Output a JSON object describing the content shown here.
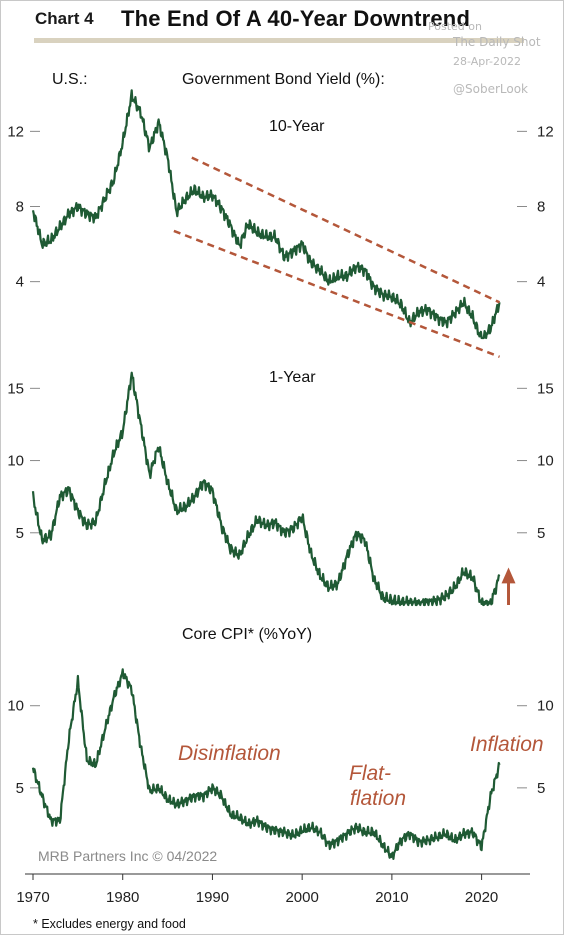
{
  "header": {
    "chart_label": "Chart 4",
    "title": "The End Of A 40-Year Downtrend"
  },
  "watermark": {
    "posted_on": "Posted on",
    "source": "The Daily Shot",
    "date": "28-Apr-2022",
    "handle": "@SoberLook"
  },
  "labels": {
    "country": "U.S.:",
    "measure": "Government Bond Yield (%):",
    "footnote": "* Excludes energy and food",
    "credit": "MRB Partners Inc © 04/2022"
  },
  "colors": {
    "line": "#1f5a34",
    "trend": "#b4573a",
    "arrow": "#b4573a",
    "rule": "#d9d2bf"
  },
  "chart_data": [
    {
      "type": "line",
      "title": "10-Year",
      "x": [
        1970,
        1971,
        1972,
        1973,
        1974,
        1975,
        1976,
        1977,
        1978,
        1979,
        1980,
        1981,
        1982,
        1983,
        1984,
        1985,
        1986,
        1987,
        1988,
        1989,
        1990,
        1991,
        1992,
        1993,
        1994,
        1995,
        1996,
        1997,
        1998,
        1999,
        2000,
        2001,
        2002,
        2003,
        2004,
        2005,
        2006,
        2007,
        2008,
        2009,
        2010,
        2011,
        2012,
        2013,
        2014,
        2015,
        2016,
        2017,
        2018,
        2019,
        2020,
        2021,
        2022
      ],
      "y": [
        7.8,
        6.0,
        6.2,
        6.9,
        7.6,
        8.0,
        7.6,
        7.4,
        8.4,
        9.4,
        11.4,
        13.9,
        13.0,
        11.1,
        12.5,
        10.6,
        7.7,
        8.4,
        8.9,
        8.5,
        8.6,
        7.9,
        7.0,
        5.9,
        7.1,
        6.6,
        6.4,
        6.4,
        5.3,
        5.6,
        6.0,
        5.0,
        4.6,
        4.0,
        4.3,
        4.3,
        4.8,
        4.6,
        3.7,
        3.3,
        3.2,
        2.8,
        1.8,
        2.4,
        2.5,
        2.1,
        1.8,
        2.3,
        2.9,
        2.1,
        0.9,
        1.5,
        2.9
      ],
      "ylim": [
        1,
        15
      ],
      "yticks": [
        4,
        8,
        12
      ],
      "trend_channel": {
        "upper": [
          [
            1987.7,
            10.6
          ],
          [
            2022.0,
            2.9
          ]
        ],
        "lower": [
          [
            1985.7,
            6.7
          ],
          [
            2022.0,
            0.0
          ]
        ]
      }
    },
    {
      "type": "line",
      "title": "1-Year",
      "x": [
        1970,
        1971,
        1972,
        1973,
        1974,
        1975,
        1976,
        1977,
        1978,
        1979,
        1980,
        1981,
        1982,
        1983,
        1984,
        1985,
        1986,
        1987,
        1988,
        1989,
        1990,
        1991,
        1992,
        1993,
        1994,
        1995,
        1996,
        1997,
        1998,
        1999,
        2000,
        2001,
        2002,
        2003,
        2004,
        2005,
        2006,
        2007,
        2008,
        2009,
        2010,
        2011,
        2012,
        2013,
        2014,
        2015,
        2016,
        2017,
        2018,
        2019,
        2020,
        2021,
        2022
      ],
      "y": [
        7.5,
        4.5,
        4.8,
        7.5,
        8.0,
        6.5,
        5.5,
        5.8,
        8.3,
        10.5,
        12.0,
        16.0,
        12.5,
        9.0,
        11.0,
        8.5,
        6.5,
        6.8,
        7.5,
        8.5,
        7.9,
        5.5,
        3.9,
        3.4,
        4.8,
        5.9,
        5.5,
        5.7,
        5.0,
        5.3,
        6.1,
        3.5,
        2.0,
        1.2,
        1.5,
        3.4,
        4.9,
        4.5,
        1.8,
        0.5,
        0.3,
        0.2,
        0.2,
        0.1,
        0.2,
        0.3,
        0.6,
        1.2,
        2.3,
        1.9,
        0.1,
        0.1,
        2.0
      ],
      "ylim": [
        0,
        18
      ],
      "yticks": [
        5,
        10,
        15
      ]
    },
    {
      "type": "line",
      "title": "Core CPI* (%YoY)",
      "x": [
        1970,
        1971,
        1972,
        1973,
        1974,
        1975,
        1976,
        1977,
        1978,
        1979,
        1980,
        1981,
        1982,
        1983,
        1984,
        1985,
        1986,
        1987,
        1988,
        1989,
        1990,
        1991,
        1992,
        1993,
        1994,
        1995,
        1996,
        1997,
        1998,
        1999,
        2000,
        2001,
        2002,
        2003,
        2004,
        2005,
        2006,
        2007,
        2008,
        2009,
        2010,
        2011,
        2012,
        2013,
        2014,
        2015,
        2016,
        2017,
        2018,
        2019,
        2020,
        2021,
        2022
      ],
      "y": [
        6.2,
        4.5,
        3.0,
        3.0,
        8.0,
        11.5,
        6.7,
        6.4,
        8.5,
        10.5,
        12.0,
        11.0,
        7.5,
        4.8,
        5.0,
        4.3,
        4.0,
        4.2,
        4.5,
        4.5,
        5.0,
        4.5,
        3.4,
        3.2,
        2.8,
        3.0,
        2.6,
        2.4,
        2.3,
        2.1,
        2.4,
        2.6,
        2.3,
        1.5,
        1.8,
        2.2,
        2.6,
        2.3,
        2.3,
        1.5,
        0.8,
        1.8,
        2.2,
        1.7,
        1.8,
        2.0,
        2.2,
        1.8,
        2.2,
        2.3,
        1.4,
        4.5,
        6.4
      ],
      "ylim": [
        0,
        14
      ],
      "yticks": [
        5,
        10
      ]
    }
  ],
  "x_axis": {
    "ticks": [
      1970,
      1980,
      1990,
      2000,
      2010,
      2020
    ],
    "range": [
      1970,
      2023.5
    ]
  },
  "annotations": {
    "disinflation": "Disinflation",
    "flatflation_1": "Flat-",
    "flatflation_2": "flation",
    "inflation": "Inflation"
  }
}
